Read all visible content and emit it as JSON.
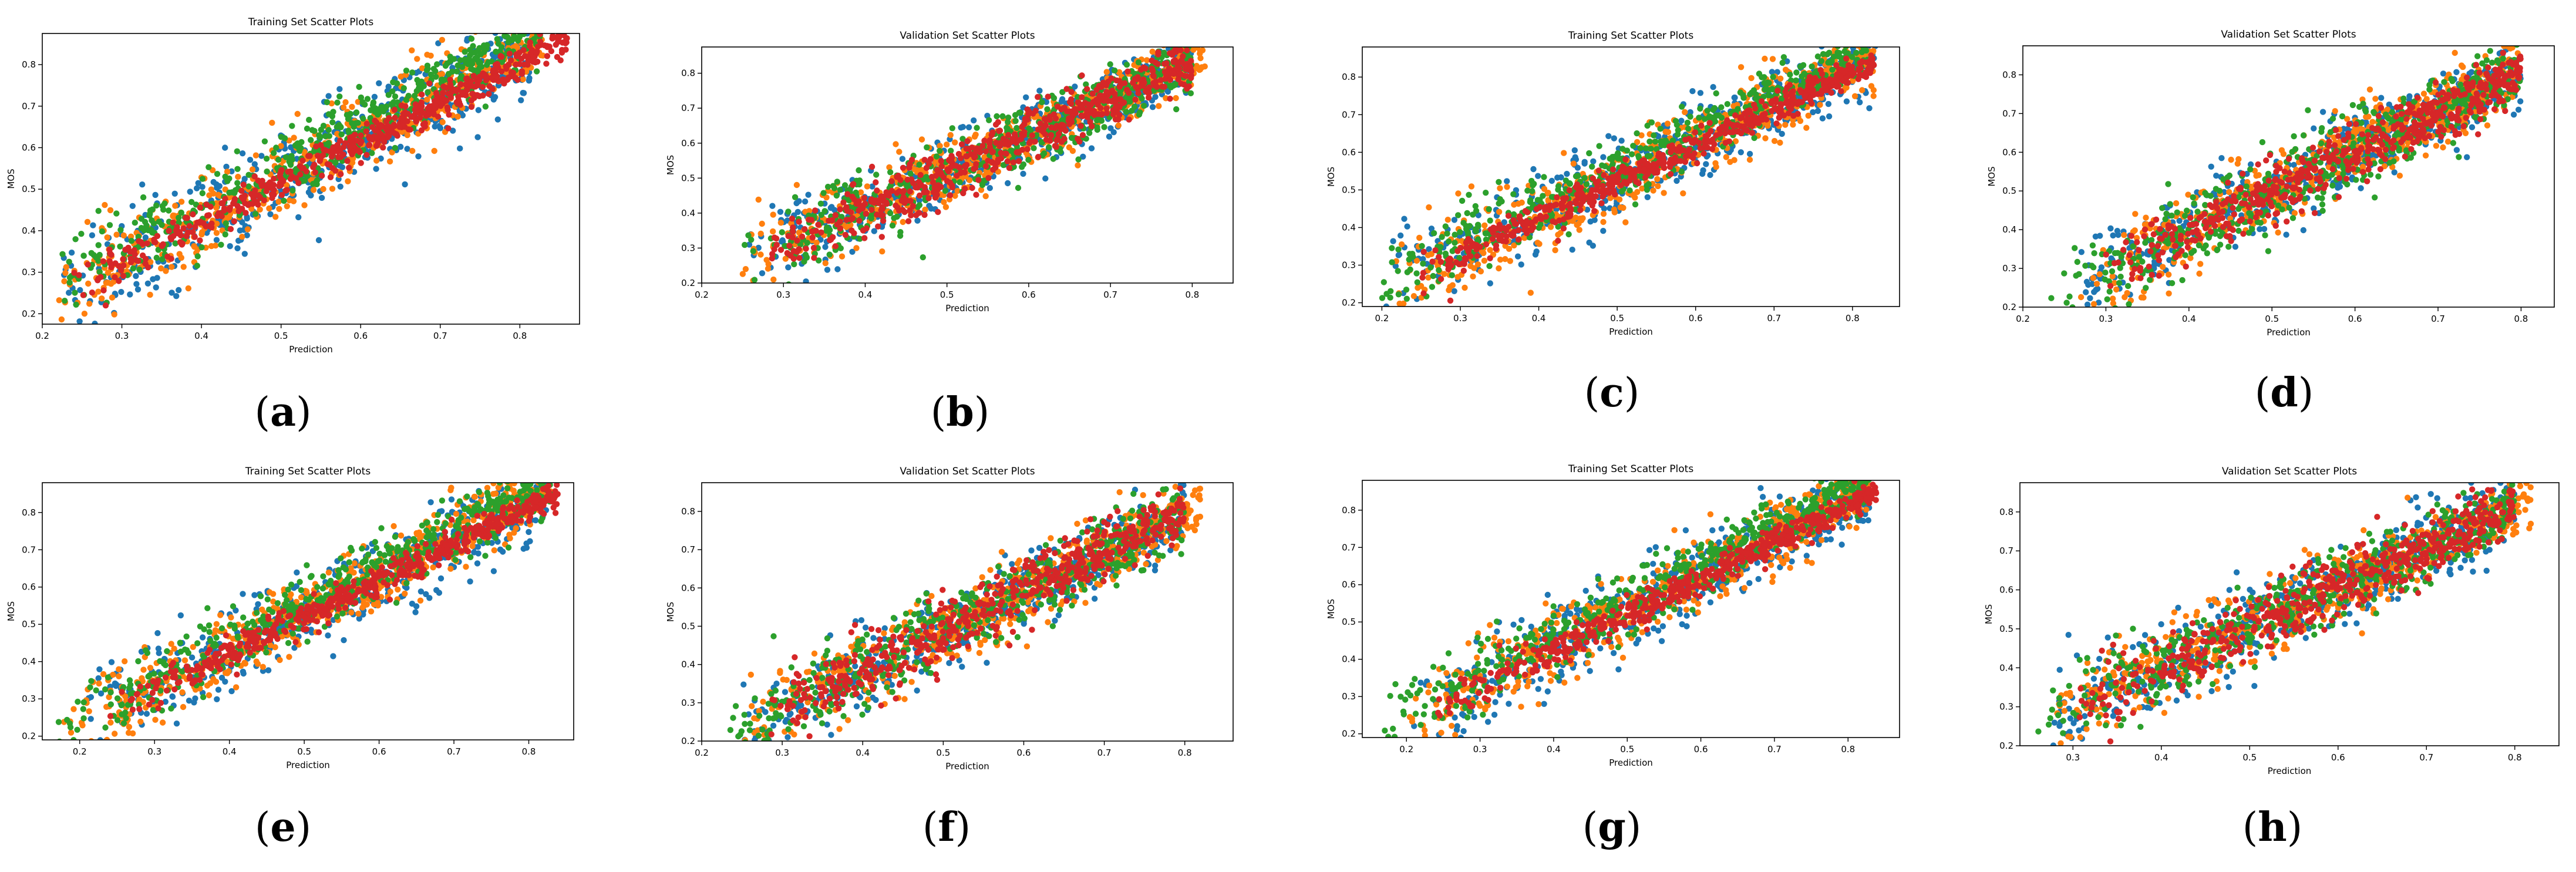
{
  "figure": {
    "series_colors": [
      "#1f77b4",
      "#ff7f0e",
      "#2ca02c",
      "#d62728"
    ],
    "axis_color": "#000000"
  },
  "chart_data": [
    {
      "type": "scatter",
      "panel": "(a)",
      "caption_open": "(",
      "caption_letter": "a",
      "caption_close": ")",
      "title": "Training Set Scatter Plots",
      "xlabel": "Prediction",
      "ylabel": "MOS",
      "xlim": [
        0.2,
        0.875
      ],
      "ylim": [
        0.175,
        0.875
      ],
      "xticks": [
        "0.2",
        "0.3",
        "0.4",
        "0.5",
        "0.6",
        "0.7",
        "0.8"
      ],
      "yticks": [
        "0.2",
        "0.3",
        "0.4",
        "0.5",
        "0.6",
        "0.7",
        "0.8"
      ],
      "series": [
        {
          "name": "series-1",
          "color": "#1f77b4",
          "x_range": [
            0.22,
            0.82
          ],
          "slope": 1.0,
          "intercept": 0.02,
          "spread": 0.07
        },
        {
          "name": "series-2",
          "color": "#ff7f0e",
          "x_range": [
            0.22,
            0.83
          ],
          "slope": 1.0,
          "intercept": 0.03,
          "spread": 0.06
        },
        {
          "name": "series-3",
          "color": "#2ca02c",
          "x_range": [
            0.22,
            0.83
          ],
          "slope": 1.0,
          "intercept": 0.05,
          "spread": 0.05
        },
        {
          "name": "series-4",
          "color": "#d62728",
          "x_range": [
            0.24,
            0.86
          ],
          "slope": 0.97,
          "intercept": 0.03,
          "spread": 0.025
        }
      ]
    },
    {
      "type": "scatter",
      "panel": "(b)",
      "caption_open": "(",
      "caption_letter": "b",
      "caption_close": ")",
      "title": "Validation Set Scatter Plots",
      "xlabel": "Prediction",
      "ylabel": "MOS",
      "xlim": [
        0.2,
        0.85
      ],
      "ylim": [
        0.2,
        0.875
      ],
      "xticks": [
        "0.2",
        "0.3",
        "0.4",
        "0.5",
        "0.6",
        "0.7",
        "0.8"
      ],
      "yticks": [
        "0.2",
        "0.3",
        "0.4",
        "0.5",
        "0.6",
        "0.7",
        "0.8"
      ],
      "series": [
        {
          "name": "series-1",
          "color": "#1f77b4",
          "x_range": [
            0.25,
            0.8
          ],
          "slope": 1.05,
          "intercept": -0.01,
          "spread": 0.06
        },
        {
          "name": "series-2",
          "color": "#ff7f0e",
          "x_range": [
            0.25,
            0.82
          ],
          "slope": 1.05,
          "intercept": -0.01,
          "spread": 0.06
        },
        {
          "name": "series-3",
          "color": "#2ca02c",
          "x_range": [
            0.25,
            0.8
          ],
          "slope": 1.05,
          "intercept": -0.01,
          "spread": 0.06
        },
        {
          "name": "series-4",
          "color": "#d62728",
          "x_range": [
            0.28,
            0.8
          ],
          "slope": 1.05,
          "intercept": -0.01,
          "spread": 0.05
        }
      ]
    },
    {
      "type": "scatter",
      "panel": "(c)",
      "caption_open": "(",
      "caption_letter": "c",
      "caption_close": ")",
      "title": "Training Set Scatter Plots",
      "xlabel": "Prediction",
      "ylabel": "MOS",
      "xlim": [
        0.175,
        0.86
      ],
      "ylim": [
        0.19,
        0.88
      ],
      "xticks": [
        "0.2",
        "0.3",
        "0.4",
        "0.5",
        "0.6",
        "0.7",
        "0.8"
      ],
      "yticks": [
        "0.2",
        "0.3",
        "0.4",
        "0.5",
        "0.6",
        "0.7",
        "0.8"
      ],
      "series": [
        {
          "name": "series-1",
          "color": "#1f77b4",
          "x_range": [
            0.2,
            0.83
          ],
          "slope": 1.0,
          "intercept": 0.03,
          "spread": 0.07
        },
        {
          "name": "series-2",
          "color": "#ff7f0e",
          "x_range": [
            0.2,
            0.83
          ],
          "slope": 1.0,
          "intercept": 0.03,
          "spread": 0.06
        },
        {
          "name": "series-3",
          "color": "#2ca02c",
          "x_range": [
            0.2,
            0.83
          ],
          "slope": 1.0,
          "intercept": 0.05,
          "spread": 0.05
        },
        {
          "name": "series-4",
          "color": "#d62728",
          "x_range": [
            0.23,
            0.83
          ],
          "slope": 0.98,
          "intercept": 0.03,
          "spread": 0.025
        }
      ]
    },
    {
      "type": "scatter",
      "panel": "(d)",
      "caption_open": "(",
      "caption_letter": "d",
      "caption_close": ")",
      "title": "Validation Set Scatter Plots",
      "xlabel": "Prediction",
      "ylabel": "MOS",
      "xlim": [
        0.2,
        0.84
      ],
      "ylim": [
        0.2,
        0.875
      ],
      "xticks": [
        "0.2",
        "0.3",
        "0.4",
        "0.5",
        "0.6",
        "0.7",
        "0.8"
      ],
      "yticks": [
        "0.2",
        "0.3",
        "0.4",
        "0.5",
        "0.6",
        "0.7",
        "0.8"
      ],
      "series": [
        {
          "name": "series-1",
          "color": "#1f77b4",
          "x_range": [
            0.27,
            0.8
          ],
          "slope": 1.02,
          "intercept": -0.01,
          "spread": 0.06
        },
        {
          "name": "series-2",
          "color": "#ff7f0e",
          "x_range": [
            0.27,
            0.8
          ],
          "slope": 1.02,
          "intercept": -0.01,
          "spread": 0.06
        },
        {
          "name": "series-3",
          "color": "#2ca02c",
          "x_range": [
            0.23,
            0.8
          ],
          "slope": 1.02,
          "intercept": -0.01,
          "spread": 0.06
        },
        {
          "name": "series-4",
          "color": "#d62728",
          "x_range": [
            0.3,
            0.8
          ],
          "slope": 1.02,
          "intercept": -0.01,
          "spread": 0.05
        }
      ]
    },
    {
      "type": "scatter",
      "panel": "(e)",
      "caption_open": "(",
      "caption_letter": "e",
      "caption_close": ")",
      "title": "Training Set Scatter Plots",
      "xlabel": "Prediction",
      "ylabel": "MOS",
      "xlim": [
        0.15,
        0.86
      ],
      "ylim": [
        0.19,
        0.88
      ],
      "xticks": [
        "0.2",
        "0.3",
        "0.4",
        "0.5",
        "0.6",
        "0.7",
        "0.8"
      ],
      "yticks": [
        "0.2",
        "0.3",
        "0.4",
        "0.5",
        "0.6",
        "0.7",
        "0.8"
      ],
      "series": [
        {
          "name": "series-1",
          "color": "#1f77b4",
          "x_range": [
            0.2,
            0.83
          ],
          "slope": 1.0,
          "intercept": 0.03,
          "spread": 0.07
        },
        {
          "name": "series-2",
          "color": "#ff7f0e",
          "x_range": [
            0.17,
            0.83
          ],
          "slope": 1.0,
          "intercept": 0.03,
          "spread": 0.06
        },
        {
          "name": "series-3",
          "color": "#2ca02c",
          "x_range": [
            0.17,
            0.83
          ],
          "slope": 1.0,
          "intercept": 0.05,
          "spread": 0.05
        },
        {
          "name": "series-4",
          "color": "#d62728",
          "x_range": [
            0.24,
            0.84
          ],
          "slope": 0.98,
          "intercept": 0.03,
          "spread": 0.025
        }
      ]
    },
    {
      "type": "scatter",
      "panel": "(f)",
      "caption_open": "(",
      "caption_letter": "f",
      "caption_close": ")",
      "title": "Validation Set Scatter Plots",
      "xlabel": "Prediction",
      "ylabel": "MOS",
      "xlim": [
        0.2,
        0.86
      ],
      "ylim": [
        0.2,
        0.875
      ],
      "xticks": [
        "0.2",
        "0.3",
        "0.4",
        "0.5",
        "0.6",
        "0.7",
        "0.8"
      ],
      "yticks": [
        "0.2",
        "0.3",
        "0.4",
        "0.5",
        "0.6",
        "0.7",
        "0.8"
      ],
      "series": [
        {
          "name": "series-1",
          "color": "#1f77b4",
          "x_range": [
            0.25,
            0.8
          ],
          "slope": 1.02,
          "intercept": -0.02,
          "spread": 0.06
        },
        {
          "name": "series-2",
          "color": "#ff7f0e",
          "x_range": [
            0.25,
            0.82
          ],
          "slope": 1.02,
          "intercept": -0.02,
          "spread": 0.06
        },
        {
          "name": "series-3",
          "color": "#2ca02c",
          "x_range": [
            0.23,
            0.8
          ],
          "slope": 1.02,
          "intercept": -0.02,
          "spread": 0.06
        },
        {
          "name": "series-4",
          "color": "#d62728",
          "x_range": [
            0.28,
            0.8
          ],
          "slope": 1.02,
          "intercept": -0.02,
          "spread": 0.05
        }
      ]
    },
    {
      "type": "scatter",
      "panel": "(g)",
      "caption_open": "(",
      "caption_letter": "g",
      "caption_close": ")",
      "title": "Training Set Scatter Plots",
      "xlabel": "Prediction",
      "ylabel": "MOS",
      "xlim": [
        0.14,
        0.87
      ],
      "ylim": [
        0.19,
        0.88
      ],
      "xticks": [
        "0.2",
        "0.3",
        "0.4",
        "0.5",
        "0.6",
        "0.7",
        "0.8"
      ],
      "yticks": [
        "0.2",
        "0.3",
        "0.4",
        "0.5",
        "0.6",
        "0.7",
        "0.8"
      ],
      "series": [
        {
          "name": "series-1",
          "color": "#1f77b4",
          "x_range": [
            0.2,
            0.83
          ],
          "slope": 1.0,
          "intercept": 0.03,
          "spread": 0.07
        },
        {
          "name": "series-2",
          "color": "#ff7f0e",
          "x_range": [
            0.2,
            0.83
          ],
          "slope": 1.0,
          "intercept": 0.03,
          "spread": 0.06
        },
        {
          "name": "series-3",
          "color": "#2ca02c",
          "x_range": [
            0.16,
            0.83
          ],
          "slope": 1.0,
          "intercept": 0.05,
          "spread": 0.05
        },
        {
          "name": "series-4",
          "color": "#d62728",
          "x_range": [
            0.24,
            0.84
          ],
          "slope": 0.98,
          "intercept": 0.03,
          "spread": 0.025
        }
      ]
    },
    {
      "type": "scatter",
      "panel": "(h)",
      "caption_open": "(",
      "caption_letter": "h",
      "caption_close": ")",
      "title": "Validation Set Scatter Plots",
      "xlabel": "Prediction",
      "ylabel": "MOS",
      "xlim": [
        0.24,
        0.85
      ],
      "ylim": [
        0.2,
        0.875
      ],
      "xticks": [
        "0.3",
        "0.4",
        "0.5",
        "0.6",
        "0.7",
        "0.8"
      ],
      "yticks": [
        "0.2",
        "0.3",
        "0.4",
        "0.5",
        "0.6",
        "0.7",
        "0.8"
      ],
      "series": [
        {
          "name": "series-1",
          "color": "#1f77b4",
          "x_range": [
            0.27,
            0.8
          ],
          "slope": 1.03,
          "intercept": -0.01,
          "spread": 0.06
        },
        {
          "name": "series-2",
          "color": "#ff7f0e",
          "x_range": [
            0.27,
            0.82
          ],
          "slope": 1.03,
          "intercept": -0.01,
          "spread": 0.06
        },
        {
          "name": "series-3",
          "color": "#2ca02c",
          "x_range": [
            0.26,
            0.8
          ],
          "slope": 1.03,
          "intercept": -0.01,
          "spread": 0.06
        },
        {
          "name": "series-4",
          "color": "#d62728",
          "x_range": [
            0.3,
            0.8
          ],
          "slope": 1.03,
          "intercept": -0.01,
          "spread": 0.05
        }
      ]
    }
  ]
}
